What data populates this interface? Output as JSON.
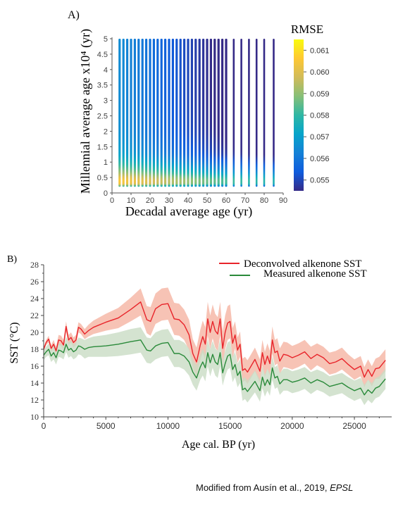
{
  "figure": {
    "credit_prefix": "Modified from Ausín et al., 2019, ",
    "credit_journal": "EPSL"
  },
  "chart_data": [
    {
      "panel_label": "A)",
      "type": "scatter",
      "xlabel": "Decadal average age (yr)",
      "ylabel": "Millennial average age x10⁴ (yr)",
      "xlim": [
        0,
        90
      ],
      "ylim": [
        0,
        5
      ],
      "xticks": [
        0,
        10,
        20,
        30,
        40,
        50,
        60,
        70,
        80,
        90
      ],
      "yticks": [
        0,
        0.5,
        1,
        1.5,
        2,
        2.5,
        3,
        3.5,
        4,
        4.5,
        5
      ],
      "grid": false,
      "colorbar": {
        "title": "RMSE",
        "range": [
          0.0545,
          0.0615
        ],
        "ticks": [
          0.055,
          0.056,
          0.057,
          0.058,
          0.059,
          0.06,
          0.061
        ],
        "tick_labels": [
          "0.055",
          "0.056",
          "0.057",
          "0.058",
          "0.059",
          "0.060",
          "0.061"
        ],
        "colormap": [
          "#352a87",
          "#0f5cdd",
          "#1481d6",
          "#06a4ca",
          "#2eb7a4",
          "#87bf77",
          "#d1bb59",
          "#fec832",
          "#f9fb0e"
        ]
      },
      "x_columns": [
        4,
        6,
        8,
        10,
        12,
        14,
        16,
        18,
        20,
        22,
        24,
        26,
        28,
        30,
        32,
        34,
        36,
        38,
        40,
        42,
        44,
        46,
        48,
        50,
        52,
        54,
        56,
        58,
        60,
        64,
        68,
        72,
        76,
        80,
        85
      ],
      "y_range": [
        0.2,
        5
      ],
      "rmse_profile": [
        [
          0.2,
          0.058
        ],
        [
          0.3,
          0.0605
        ],
        [
          0.45,
          0.0605
        ],
        [
          0.6,
          0.0595
        ],
        [
          0.8,
          0.0585
        ],
        [
          1.0,
          0.0578
        ],
        [
          1.3,
          0.057
        ],
        [
          2.0,
          0.0566
        ],
        [
          3.0,
          0.0565
        ],
        [
          5.0,
          0.0565
        ]
      ]
    },
    {
      "panel_label": "B)",
      "type": "line",
      "xlabel": "Age cal. BP (yr)",
      "ylabel": "SST (°C)",
      "xlim": [
        0,
        28000
      ],
      "ylim": [
        10,
        28
      ],
      "xticks": [
        0,
        5000,
        10000,
        15000,
        20000,
        25000
      ],
      "yticks": [
        10,
        12,
        14,
        16,
        18,
        20,
        22,
        24,
        26,
        28
      ],
      "grid": false,
      "legend_position": "top-right",
      "series": [
        {
          "name": "Deconvolved alkenone SST",
          "color": "#e8242a",
          "band_color": "#f6b9a8",
          "x": [
            0,
            200,
            400,
            600,
            800,
            1000,
            1200,
            1400,
            1600,
            1800,
            2000,
            2200,
            2400,
            2600,
            2800,
            3000,
            3300,
            3600,
            4000,
            5000,
            6000,
            7000,
            7800,
            8300,
            8600,
            9000,
            9500,
            10000,
            10500,
            10900,
            11300,
            11700,
            12000,
            12300,
            12600,
            12800,
            13000,
            13200,
            13400,
            13600,
            13800,
            14000,
            14200,
            14400,
            14600,
            14800,
            15000,
            15200,
            15400,
            15600,
            15800,
            16000,
            16200,
            16400,
            16600,
            17000,
            17400,
            17600,
            17800,
            18000,
            18200,
            18400,
            18600,
            18800,
            19000,
            19300,
            19600,
            20000,
            20500,
            21000,
            21500,
            22000,
            22500,
            23000,
            23500,
            24000,
            24500,
            25000,
            25500,
            25800,
            26100,
            26400,
            26700,
            27000,
            27500
          ],
          "values": [
            18.0,
            18.8,
            19.2,
            18.1,
            18.6,
            17.8,
            19.1,
            19.0,
            18.5,
            20.7,
            19.1,
            19.4,
            18.8,
            19.1,
            20.6,
            20.4,
            19.8,
            20.2,
            20.6,
            21.2,
            21.7,
            22.7,
            23.6,
            21.5,
            21.3,
            22.8,
            23.3,
            23.4,
            21.6,
            21.5,
            20.9,
            19.7,
            17.5,
            16.5,
            18.5,
            19.5,
            18.6,
            21.6,
            20.0,
            21.3,
            20.2,
            19.8,
            21.6,
            18.1,
            20.0,
            21.1,
            21.3,
            18.7,
            19.7,
            17.9,
            18.6,
            15.5,
            15.7,
            15.3,
            15.8,
            16.8,
            15.4,
            17.6,
            16.2,
            17.2,
            16.3,
            19.1,
            17.6,
            17.8,
            16.6,
            17.4,
            17.3,
            17.0,
            17.3,
            17.7,
            16.9,
            17.4,
            17.0,
            16.3,
            16.5,
            16.9,
            16.2,
            15.6,
            16.0,
            14.7,
            15.6,
            14.8,
            15.7,
            15.8,
            16.7
          ],
          "band_half_width": [
            0.3,
            0.3,
            0.4,
            0.4,
            0.5,
            0.5,
            0.6,
            0.6,
            0.6,
            0.6,
            0.6,
            0.6,
            0.6,
            0.6,
            0.6,
            0.6,
            0.6,
            0.7,
            0.8,
            1.0,
            1.2,
            1.4,
            1.6,
            1.6,
            1.7,
            1.8,
            1.9,
            1.9,
            1.9,
            1.9,
            1.8,
            1.8,
            1.7,
            1.7,
            1.8,
            1.9,
            2.0,
            2.0,
            2.0,
            2.0,
            2.0,
            2.0,
            2.0,
            2.0,
            2.0,
            2.0,
            2.0,
            1.8,
            1.6,
            1.5,
            1.5,
            1.4,
            1.4,
            1.4,
            1.4,
            1.4,
            1.4,
            1.5,
            1.5,
            1.5,
            1.5,
            1.6,
            1.5,
            1.5,
            1.5,
            1.5,
            1.5,
            1.4,
            1.4,
            1.4,
            1.4,
            1.3,
            1.3,
            1.3,
            1.3,
            1.3,
            1.2,
            1.2,
            1.2,
            1.2,
            1.2,
            1.2,
            1.2,
            1.3,
            1.3
          ]
        },
        {
          "name": "Measured alkenone SST",
          "color": "#2a8a3a",
          "band_color": "#c9dcc4",
          "x": [
            0,
            200,
            400,
            600,
            800,
            1000,
            1200,
            1400,
            1600,
            1800,
            2000,
            2200,
            2400,
            2600,
            2800,
            3000,
            3300,
            3600,
            4000,
            5000,
            6000,
            7000,
            7800,
            8300,
            8600,
            9000,
            9500,
            10000,
            10500,
            10900,
            11300,
            11700,
            12000,
            12300,
            12600,
            12800,
            13000,
            13200,
            13400,
            13600,
            13800,
            14000,
            14200,
            14400,
            14600,
            14800,
            15000,
            15200,
            15400,
            15600,
            15800,
            16000,
            16200,
            16400,
            16600,
            17000,
            17400,
            17600,
            17800,
            18000,
            18200,
            18400,
            18600,
            18800,
            19000,
            19300,
            19600,
            20000,
            20500,
            21000,
            21500,
            22000,
            22500,
            23000,
            23500,
            24000,
            24500,
            25000,
            25500,
            25800,
            26100,
            26400,
            26700,
            27000,
            27500
          ],
          "values": [
            17.3,
            17.7,
            18.0,
            17.2,
            17.6,
            17.0,
            17.9,
            17.8,
            17.6,
            18.6,
            17.9,
            18.1,
            17.7,
            17.9,
            18.4,
            18.3,
            18.0,
            18.2,
            18.3,
            18.4,
            18.6,
            18.9,
            19.1,
            17.9,
            17.8,
            18.4,
            18.7,
            18.8,
            17.5,
            17.5,
            17.2,
            16.5,
            15.3,
            14.6,
            15.9,
            16.5,
            15.8,
            17.6,
            16.4,
            17.4,
            16.5,
            16.2,
            17.6,
            15.2,
            16.3,
            17.2,
            17.4,
            15.6,
            16.2,
            14.9,
            15.4,
            13.2,
            13.4,
            13.0,
            13.4,
            14.2,
            13.1,
            14.7,
            13.7,
            14.4,
            13.8,
            15.8,
            14.6,
            14.8,
            13.9,
            14.4,
            14.4,
            14.1,
            14.3,
            14.6,
            14.0,
            14.4,
            14.1,
            13.6,
            13.8,
            14.0,
            13.5,
            13.1,
            13.4,
            12.6,
            13.2,
            12.8,
            13.4,
            13.6,
            14.5
          ],
          "band_half_width": [
            0.6,
            0.6,
            0.7,
            0.7,
            0.8,
            0.8,
            0.8,
            0.8,
            0.8,
            0.9,
            0.9,
            0.9,
            0.9,
            0.9,
            1.0,
            1.0,
            1.1,
            1.1,
            1.2,
            1.3,
            1.4,
            1.5,
            1.5,
            1.5,
            1.5,
            1.6,
            1.6,
            1.6,
            1.6,
            1.6,
            1.6,
            1.6,
            1.5,
            1.5,
            1.5,
            1.6,
            1.6,
            1.6,
            1.6,
            1.6,
            1.6,
            1.6,
            1.6,
            1.5,
            1.5,
            1.6,
            1.6,
            1.5,
            1.5,
            1.4,
            1.4,
            1.3,
            1.3,
            1.3,
            1.3,
            1.3,
            1.3,
            1.3,
            1.3,
            1.3,
            1.3,
            1.4,
            1.3,
            1.3,
            1.3,
            1.3,
            1.3,
            1.3,
            1.3,
            1.3,
            1.3,
            1.2,
            1.2,
            1.2,
            1.2,
            1.2,
            1.2,
            1.2,
            1.2,
            1.2,
            1.2,
            1.2,
            1.2,
            1.2,
            1.2
          ]
        }
      ]
    }
  ]
}
